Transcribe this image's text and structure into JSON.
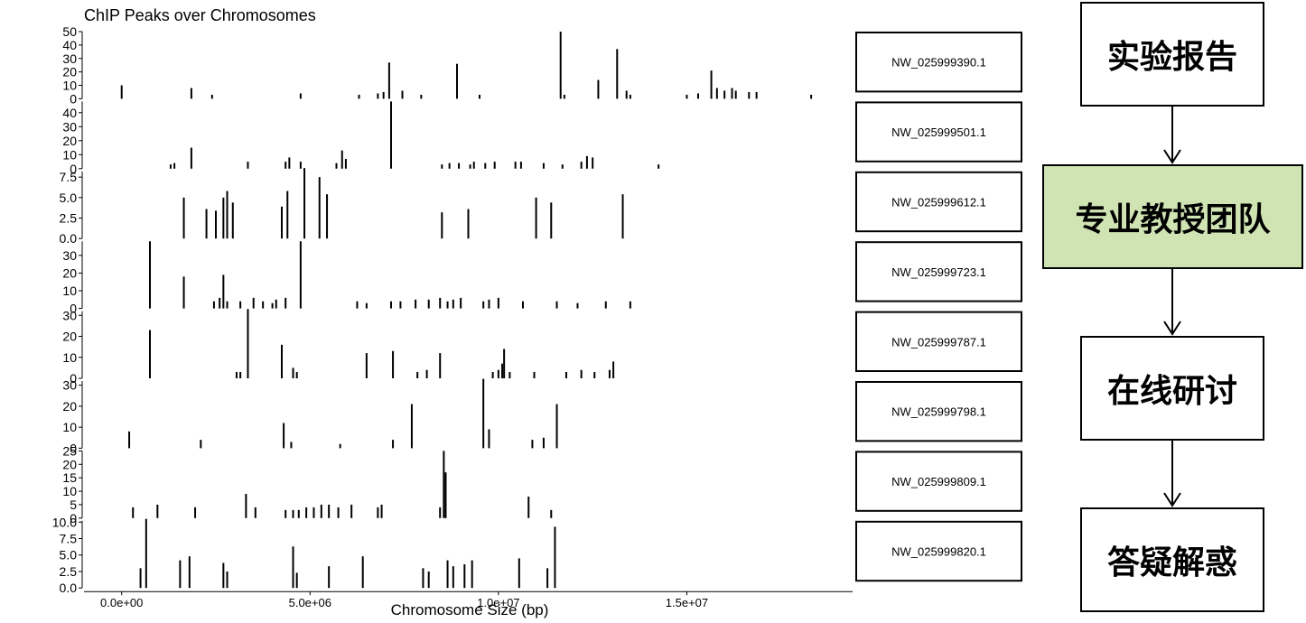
{
  "chart_data": {
    "type": "bar",
    "title": "ChIP Peaks over Chromosomes",
    "xlabel": "Chromosome Size (bp)",
    "ylabel": "",
    "xlim": [
      -1000000,
      19400000
    ],
    "x_ticks": [
      0,
      5000000,
      10000000,
      15000000
    ],
    "x_tick_labels": [
      "0.0e+00",
      "5.0e+06",
      "1.0e+07",
      "1.5e+07"
    ],
    "grid": false,
    "legend": "none",
    "color": "#000000",
    "panels": [
      {
        "name": "NW_025999390.1",
        "ylim": [
          0,
          50
        ],
        "y_ticks": [
          0,
          10,
          20,
          30,
          40,
          50
        ],
        "peaks": [
          [
            0,
            10
          ],
          [
            1850000,
            8
          ],
          [
            2400000,
            3
          ],
          [
            4750000,
            4
          ],
          [
            6300000,
            3
          ],
          [
            6800000,
            4
          ],
          [
            6950000,
            5
          ],
          [
            7100000,
            27
          ],
          [
            7450000,
            6
          ],
          [
            7950000,
            3
          ],
          [
            8900000,
            26
          ],
          [
            9500000,
            3
          ],
          [
            11650000,
            50
          ],
          [
            11750000,
            3
          ],
          [
            12650000,
            14
          ],
          [
            13150000,
            37
          ],
          [
            13400000,
            6
          ],
          [
            13500000,
            3
          ],
          [
            15000000,
            3
          ],
          [
            15300000,
            4
          ],
          [
            15650000,
            21
          ],
          [
            15800000,
            8
          ],
          [
            16000000,
            6
          ],
          [
            16200000,
            8
          ],
          [
            16300000,
            6
          ],
          [
            16650000,
            5
          ],
          [
            16850000,
            5
          ],
          [
            18300000,
            3
          ]
        ]
      },
      {
        "name": "NW_025999501.1",
        "ylim": [
          0,
          48
        ],
        "y_ticks": [
          0,
          10,
          20,
          30,
          40
        ],
        "peaks": [
          [
            1300000,
            3
          ],
          [
            1400000,
            4
          ],
          [
            1850000,
            15
          ],
          [
            3350000,
            5
          ],
          [
            4350000,
            5
          ],
          [
            4450000,
            8
          ],
          [
            4750000,
            5
          ],
          [
            5700000,
            4
          ],
          [
            5850000,
            13
          ],
          [
            5950000,
            7
          ],
          [
            7150000,
            48
          ],
          [
            8500000,
            3
          ],
          [
            8700000,
            4
          ],
          [
            8950000,
            4
          ],
          [
            9250000,
            3
          ],
          [
            9350000,
            5
          ],
          [
            9650000,
            4
          ],
          [
            9900000,
            5
          ],
          [
            10450000,
            5
          ],
          [
            10600000,
            5
          ],
          [
            11200000,
            4
          ],
          [
            11700000,
            3
          ],
          [
            12200000,
            5
          ],
          [
            12350000,
            9
          ],
          [
            12500000,
            8
          ],
          [
            14250000,
            3
          ]
        ]
      },
      {
        "name": "NW_025999612.1",
        "ylim": [
          0,
          8.2
        ],
        "y_ticks": [
          0,
          2.5,
          5.0,
          7.5
        ],
        "y_tick_labels": [
          "0.0",
          "2.5",
          "5.0",
          "7.5"
        ],
        "peaks": [
          [
            1650000,
            5.0
          ],
          [
            2250000,
            3.6
          ],
          [
            2500000,
            3.4
          ],
          [
            2700000,
            5.0
          ],
          [
            2800000,
            5.8
          ],
          [
            2950000,
            4.4
          ],
          [
            4250000,
            3.9
          ],
          [
            4400000,
            5.8
          ],
          [
            4850000,
            8.8
          ],
          [
            5250000,
            7.5
          ],
          [
            5450000,
            5.4
          ],
          [
            8500000,
            3.2
          ],
          [
            9200000,
            3.6
          ],
          [
            11000000,
            5.0
          ],
          [
            11400000,
            4.4
          ],
          [
            13300000,
            5.4
          ]
        ]
      },
      {
        "name": "NW_025999723.1",
        "ylim": [
          0,
          38
        ],
        "y_ticks": [
          0,
          10,
          20,
          30
        ],
        "peaks": [
          [
            750000,
            38
          ],
          [
            1650000,
            18
          ],
          [
            2450000,
            4
          ],
          [
            2600000,
            6
          ],
          [
            2700000,
            19
          ],
          [
            2800000,
            4
          ],
          [
            3150000,
            4
          ],
          [
            3500000,
            6
          ],
          [
            3750000,
            4
          ],
          [
            4000000,
            3
          ],
          [
            4100000,
            5
          ],
          [
            4350000,
            6
          ],
          [
            4750000,
            38
          ],
          [
            6250000,
            4
          ],
          [
            6500000,
            3
          ],
          [
            7150000,
            4
          ],
          [
            7400000,
            4
          ],
          [
            7800000,
            5
          ],
          [
            8150000,
            5
          ],
          [
            8450000,
            6
          ],
          [
            8650000,
            4
          ],
          [
            8800000,
            5
          ],
          [
            9000000,
            6
          ],
          [
            9600000,
            4
          ],
          [
            9750000,
            5
          ],
          [
            10000000,
            6
          ],
          [
            10650000,
            4
          ],
          [
            11550000,
            4
          ],
          [
            12100000,
            3
          ],
          [
            12850000,
            4
          ],
          [
            13500000,
            4
          ]
        ]
      },
      {
        "name": "NW_025999787.1",
        "ylim": [
          0,
          32
        ],
        "y_ticks": [
          0,
          10,
          20,
          30
        ],
        "peaks": [
          [
            750000,
            23
          ],
          [
            3050000,
            3
          ],
          [
            3150000,
            3
          ],
          [
            3350000,
            33
          ],
          [
            4250000,
            16
          ],
          [
            4550000,
            5
          ],
          [
            4650000,
            3
          ],
          [
            6500000,
            12
          ],
          [
            7200000,
            13
          ],
          [
            7850000,
            3
          ],
          [
            8100000,
            4
          ],
          [
            8450000,
            12
          ],
          [
            9850000,
            3
          ],
          [
            10000000,
            4
          ],
          [
            10100000,
            7
          ],
          [
            10150000,
            14
          ],
          [
            10300000,
            3
          ],
          [
            10950000,
            3
          ],
          [
            11800000,
            3
          ],
          [
            12200000,
            4
          ],
          [
            12550000,
            3
          ],
          [
            12950000,
            4
          ],
          [
            13050000,
            8
          ]
        ]
      },
      {
        "name": "NW_025999798.1",
        "ylim": [
          0,
          32
        ],
        "y_ticks": [
          0,
          10,
          20,
          30
        ],
        "peaks": [
          [
            200000,
            8
          ],
          [
            2100000,
            4
          ],
          [
            4300000,
            12
          ],
          [
            4500000,
            3
          ],
          [
            5800000,
            2
          ],
          [
            7200000,
            4
          ],
          [
            7700000,
            21
          ],
          [
            9600000,
            33
          ],
          [
            9750000,
            9
          ],
          [
            10900000,
            4
          ],
          [
            11200000,
            5
          ],
          [
            11550000,
            21
          ]
        ]
      },
      {
        "name": "NW_025999809.1",
        "ylim": [
          0,
          25
        ],
        "y_ticks": [
          0,
          5,
          10,
          15,
          20,
          25
        ],
        "peaks": [
          [
            300000,
            4
          ],
          [
            950000,
            5
          ],
          [
            1950000,
            4
          ],
          [
            3300000,
            9
          ],
          [
            3550000,
            4
          ],
          [
            4350000,
            3
          ],
          [
            4550000,
            3
          ],
          [
            4700000,
            3
          ],
          [
            4900000,
            4
          ],
          [
            5100000,
            4
          ],
          [
            5300000,
            5
          ],
          [
            5500000,
            5
          ],
          [
            5750000,
            4
          ],
          [
            6100000,
            5
          ],
          [
            6800000,
            4
          ],
          [
            6900000,
            5
          ],
          [
            8450000,
            4
          ],
          [
            8550000,
            25
          ],
          [
            8600000,
            17
          ],
          [
            10800000,
            8
          ],
          [
            11400000,
            3
          ]
        ]
      },
      {
        "name": "NW_025999820.1",
        "ylim": [
          0,
          10.2
        ],
        "y_ticks": [
          0,
          2.5,
          5.0,
          7.5,
          10.0
        ],
        "y_tick_labels": [
          "0.0",
          "2.5",
          "5.0",
          "7.5",
          "10.0"
        ],
        "peaks": [
          [
            500000,
            3.0
          ],
          [
            650000,
            10.5
          ],
          [
            1550000,
            4.2
          ],
          [
            1800000,
            4.8
          ],
          [
            2700000,
            3.8
          ],
          [
            2800000,
            2.5
          ],
          [
            4550000,
            6.3
          ],
          [
            4650000,
            2.3
          ],
          [
            5500000,
            3.3
          ],
          [
            6400000,
            4.8
          ],
          [
            8000000,
            3.0
          ],
          [
            8150000,
            2.5
          ],
          [
            8650000,
            4.2
          ],
          [
            8800000,
            3.3
          ],
          [
            9100000,
            3.6
          ],
          [
            9300000,
            4.2
          ],
          [
            10550000,
            4.5
          ],
          [
            11300000,
            3.0
          ],
          [
            11500000,
            9.3
          ]
        ]
      }
    ]
  },
  "flowchart": {
    "steps": [
      {
        "label": "实验报告",
        "highlight": false
      },
      {
        "label": "专业教授团队",
        "highlight": true
      },
      {
        "label": "在线研讨",
        "highlight": false
      },
      {
        "label": "答疑解惑",
        "highlight": false
      }
    ],
    "highlight_color": "#cfe3b3"
  }
}
